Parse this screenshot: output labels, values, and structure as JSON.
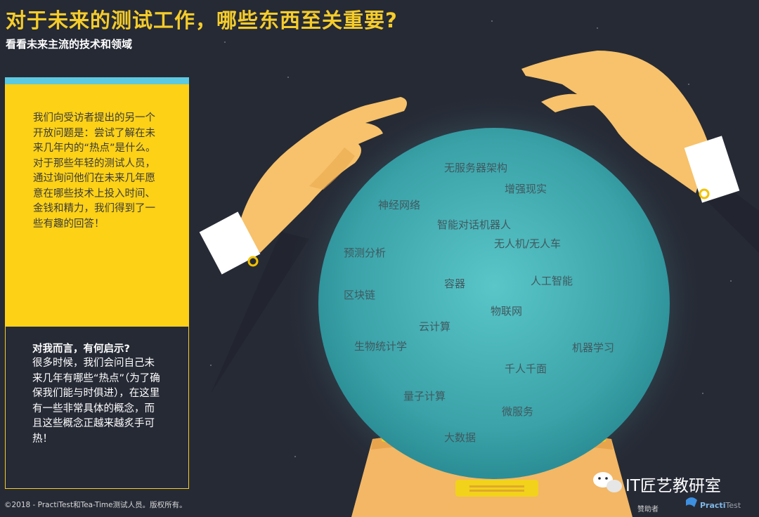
{
  "header": {
    "title": "对于未来的测试工作，哪些东西至关重要?",
    "subtitle": "看看未来主流的技术和领域"
  },
  "intro_card": {
    "text": "我们向受访者提出的另一个开放问题是：尝试了解在未来几年内的“热点”是什么。对于那些年轻的测试人员，通过询问他们在未来几年愿意在哪些技术上投入时间、金钱和精力，我们得到了一些有趣的回答！"
  },
  "insight_card": {
    "heading": "对我而言，有何启示?",
    "text": "很多时候，我们会问自己未来几年有哪些“热点”（为了确保我们能与时俱进），在这里有一些非常具体的概念，而且这些概念正越来越炙手可热！"
  },
  "crystal_ball": {
    "keywords": [
      "无服务器架构",
      "增强现实",
      "神经网络",
      "智能对话机器人",
      "无人机/无人车",
      "预测分析",
      "容器",
      "人工智能",
      "区块链",
      "物联网",
      "云计算",
      "生物统计学",
      "机器学习",
      "千人千面",
      "量子计算",
      "微服务",
      "大数据"
    ]
  },
  "footer": {
    "copyright": "©2018 - PractiTest和Tea-Time测试人员。版权所有。",
    "brand": "IT匠艺教研室",
    "sponsor_label": "赞助者",
    "logo_main": "Practi",
    "logo_sub": "Test"
  },
  "colors": {
    "background": "#262a35",
    "accent_yellow": "#fcd116",
    "title_yellow": "#f5cc2a",
    "card_top_blue": "#5cc9e0",
    "ball": "#3aa2a8",
    "hand": "#f7c26b"
  },
  "icons": [
    "wechat-icon",
    "practitest-logo-icon"
  ]
}
